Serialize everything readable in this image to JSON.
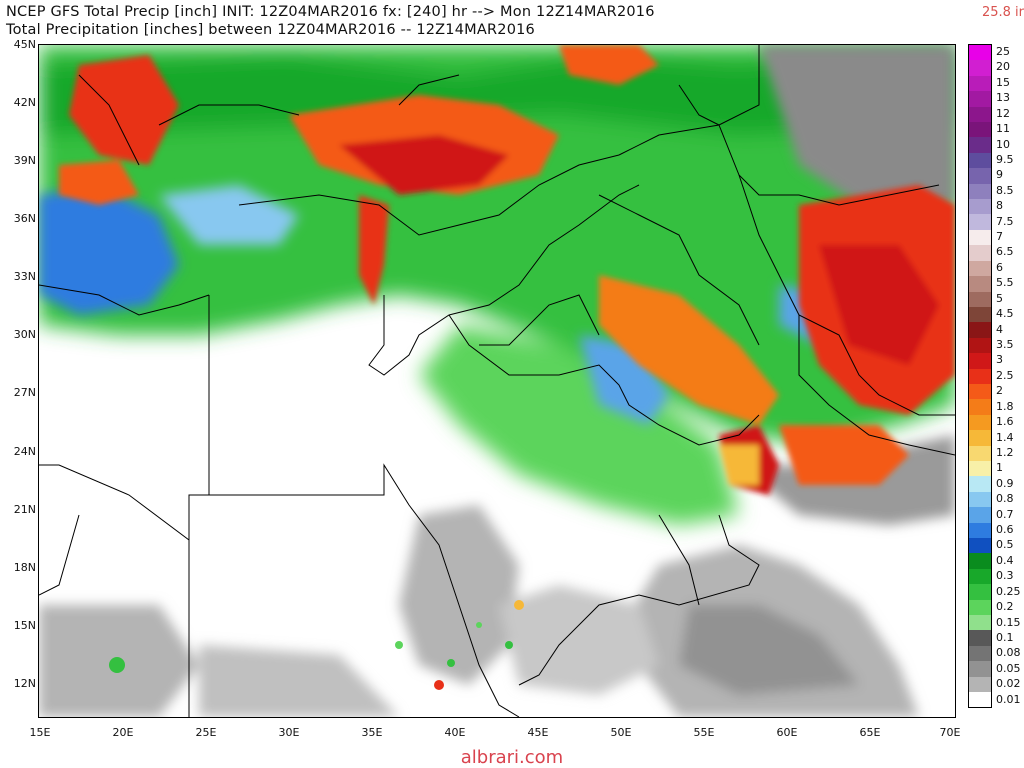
{
  "header": {
    "title_line1": "NCEP GFS Total Precip [inch] INIT: 12Z04MAR2016 fx: [240] hr --> Mon 12Z14MAR2016",
    "title_line2": "Total Precipitation [inches] between 12Z04MAR2016 -- 12Z14MAR2016",
    "max_value": "25.8 ir"
  },
  "map": {
    "lat_labels": [
      "45N",
      "42N",
      "39N",
      "36N",
      "33N",
      "30N",
      "27N",
      "24N",
      "21N",
      "18N",
      "15N",
      "12N"
    ],
    "lon_labels": [
      "15E",
      "20E",
      "25E",
      "30E",
      "35E",
      "40E",
      "45E",
      "50E",
      "55E",
      "60E",
      "65E",
      "70E"
    ],
    "lat_range": [
      10,
      45
    ],
    "lon_range": [
      15,
      70
    ]
  },
  "legend": {
    "items": [
      {
        "label": "25",
        "color": "#e800e8"
      },
      {
        "label": "20",
        "color": "#d11fd1"
      },
      {
        "label": "15",
        "color": "#b91cb9"
      },
      {
        "label": "13",
        "color": "#a219a2"
      },
      {
        "label": "12",
        "color": "#8c168c"
      },
      {
        "label": "11",
        "color": "#7a147a"
      },
      {
        "label": "10",
        "color": "#6a2c8a"
      },
      {
        "label": "9.5",
        "color": "#5e4d9e"
      },
      {
        "label": "9",
        "color": "#7764ad"
      },
      {
        "label": "8.5",
        "color": "#8e80bd"
      },
      {
        "label": "8",
        "color": "#a79cce"
      },
      {
        "label": "7.5",
        "color": "#c0b8dd"
      },
      {
        "label": "7",
        "color": "#f6ecec"
      },
      {
        "label": "6.5",
        "color": "#e4cccc"
      },
      {
        "label": "6",
        "color": "#cfa8a0"
      },
      {
        "label": "5.5",
        "color": "#b88a80"
      },
      {
        "label": "5",
        "color": "#9e6b60"
      },
      {
        "label": "4.5",
        "color": "#7e4538"
      },
      {
        "label": "4",
        "color": "#8a1616"
      },
      {
        "label": "3.5",
        "color": "#b01414"
      },
      {
        "label": "3",
        "color": "#d01818"
      },
      {
        "label": "2.5",
        "color": "#e83018"
      },
      {
        "label": "2",
        "color": "#f45a18"
      },
      {
        "label": "1.8",
        "color": "#f47c18"
      },
      {
        "label": "1.6",
        "color": "#f59a20"
      },
      {
        "label": "1.4",
        "color": "#f6b838"
      },
      {
        "label": "1.2",
        "color": "#f8d870"
      },
      {
        "label": "1",
        "color": "#f8f0a8"
      },
      {
        "label": "0.9",
        "color": "#b8e8f4"
      },
      {
        "label": "0.8",
        "color": "#88c8f0"
      },
      {
        "label": "0.7",
        "color": "#5aa4e8"
      },
      {
        "label": "0.6",
        "color": "#2e7ce0"
      },
      {
        "label": "0.5",
        "color": "#1050c0"
      },
      {
        "label": "0.4",
        "color": "#0a8c1e"
      },
      {
        "label": "0.3",
        "color": "#18a82a"
      },
      {
        "label": "0.25",
        "color": "#34c040"
      },
      {
        "label": "0.2",
        "color": "#5cd45c"
      },
      {
        "label": "0.15",
        "color": "#90e08c"
      },
      {
        "label": "0.1",
        "color": "#585858"
      },
      {
        "label": "0.08",
        "color": "#747474"
      },
      {
        "label": "0.05",
        "color": "#929292"
      },
      {
        "label": "0.02",
        "color": "#b4b4b4"
      },
      {
        "label": "0.01",
        "color": "#ffffff"
      }
    ]
  },
  "watermark": {
    "text": "albrari.com"
  }
}
